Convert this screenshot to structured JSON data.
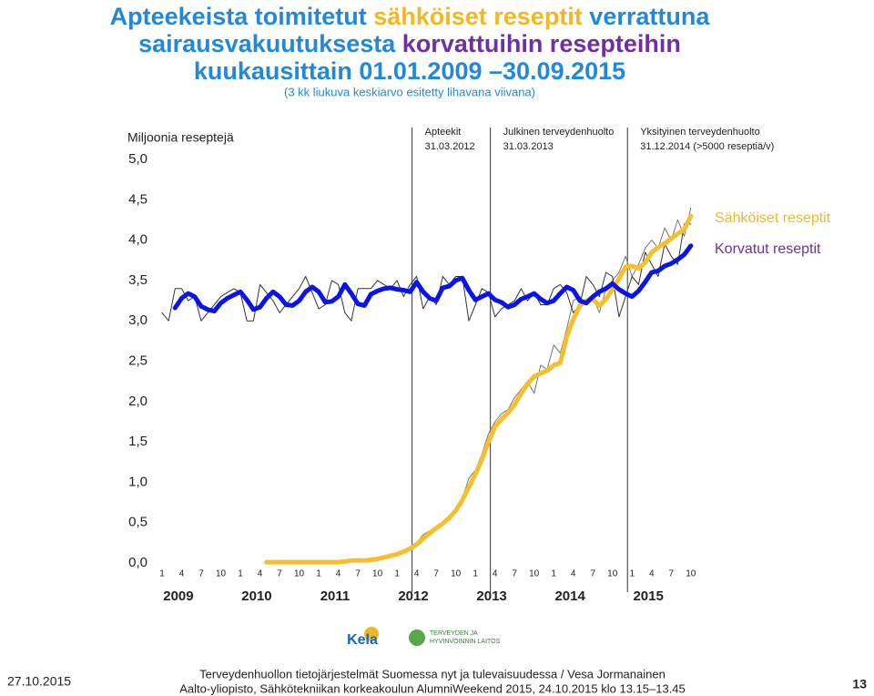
{
  "chart_data": {
    "type": "line",
    "title_parts": [
      [
        {
          "text": "Apteekeista toimitetut ",
          "color": "#2388d8"
        },
        {
          "text": "sähköiset reseptit",
          "color": "#f2b824"
        },
        {
          "text": " verrattuna",
          "color": "#2388d8"
        }
      ],
      [
        {
          "text": "sairausvakuutuksesta ",
          "color": "#2388d8"
        },
        {
          "text": "korvattuihin resepteihin",
          "color": "#7030a0"
        }
      ],
      [
        {
          "text": "kuukausittain 01.01.2009 –30.09.2015",
          "color": "#2388d8"
        }
      ]
    ],
    "subtitle": "(3 kk liukuva keskiarvo esitetty lihavana viivana)",
    "y_label": "Miljoonia reseptejä",
    "ylim": [
      0,
      5
    ],
    "yticks": [
      {
        "value": 0,
        "label": "0,0"
      },
      {
        "value": 0.5,
        "label": "0,5"
      },
      {
        "value": 1,
        "label": "1,0"
      },
      {
        "value": 1.5,
        "label": "1,5"
      },
      {
        "value": 2,
        "label": "2,0"
      },
      {
        "value": 2.5,
        "label": "2,5"
      },
      {
        "value": 3,
        "label": "3,0"
      },
      {
        "value": 3.5,
        "label": "3,5"
      },
      {
        "value": 4,
        "label": "4,0"
      },
      {
        "value": 4.5,
        "label": "4,5"
      },
      {
        "value": 5,
        "label": "5,0"
      }
    ],
    "grid": false,
    "categories": [
      "1",
      null,
      null,
      "4",
      null,
      null,
      "7",
      null,
      null,
      "10",
      null,
      null,
      "1",
      null,
      null,
      "4",
      null,
      null,
      "7",
      null,
      null,
      "10",
      null,
      null,
      "1",
      null,
      null,
      "4",
      null,
      null,
      "7",
      null,
      null,
      "10",
      null,
      null,
      "1",
      null,
      null,
      "4",
      null,
      null,
      "7",
      null,
      null,
      "10",
      null,
      null,
      "1",
      null,
      null,
      "4",
      null,
      null,
      "7",
      null,
      null,
      "10",
      null,
      null,
      "1",
      null,
      null,
      "4",
      null,
      null,
      "7",
      null,
      null,
      "10",
      null,
      null,
      "1",
      null,
      null,
      "4",
      null,
      null,
      "7",
      null,
      null,
      "10"
    ],
    "years": [
      "2009",
      "2010",
      "2011",
      "2012",
      "2013",
      "2014",
      "2015"
    ],
    "annotations": [
      {
        "lines": [
          "Apteekit",
          "31.03.2012"
        ],
        "date": "31.03.2012"
      },
      {
        "lines": [
          "Julkinen terveydenhuolto",
          "31.03.2013"
        ],
        "date": "31.03.2013"
      },
      {
        "lines": [
          "Yksityinen terveydenhuolto",
          "31.12.2014 (>5000 reseptiä/v)"
        ],
        "date": "31.12.2014"
      }
    ],
    "series": [
      {
        "color": "#777777",
        "width": 1,
        "values": [
          null,
          null,
          null,
          null,
          null,
          null,
          null,
          null,
          null,
          null,
          null,
          null,
          null,
          null,
          null,
          null,
          0.01,
          0.01,
          0.01,
          0.01,
          0.01,
          0.01,
          0.01,
          0.01,
          0.01,
          0.01,
          0.02,
          0.02,
          0.02,
          0.03,
          0.03,
          0.03,
          0.04,
          0.05,
          0.08,
          0.1,
          0.11,
          0.15,
          0.2,
          0.25,
          0.35,
          0.4,
          0.45,
          0.5,
          0.55,
          0.68,
          0.8,
          1.05,
          1.15,
          1.35,
          1.6,
          1.75,
          1.85,
          1.9,
          2.05,
          2.15,
          2.25,
          2.1,
          2.45,
          2.4,
          2.7,
          2.6,
          2.9,
          3.25,
          3.3,
          3.2,
          3.3,
          3.1,
          3.4,
          3.5,
          3.6,
          3.8,
          3.55,
          3.7,
          3.9,
          4.0,
          3.9,
          4.15,
          4.0,
          4.25,
          4.05,
          4.4
        ]
      },
      {
        "color": "#333333",
        "width": 1,
        "values": [
          3.1,
          3.0,
          3.4,
          3.4,
          3.25,
          3.3,
          3.0,
          3.1,
          3.2,
          3.3,
          3.35,
          3.4,
          3.35,
          3.0,
          3.0,
          3.45,
          3.35,
          3.25,
          3.1,
          3.2,
          3.3,
          3.4,
          3.55,
          3.35,
          3.15,
          3.2,
          3.5,
          3.45,
          3.1,
          3.0,
          3.4,
          3.4,
          3.4,
          3.5,
          3.45,
          3.4,
          3.5,
          3.3,
          3.45,
          3.55,
          3.15,
          3.3,
          3.2,
          3.55,
          3.45,
          3.55,
          3.55,
          3.0,
          3.2,
          3.4,
          3.35,
          3.05,
          3.15,
          3.2,
          3.25,
          3.4,
          3.25,
          3.35,
          3.2,
          3.2,
          3.4,
          3.45,
          3.35,
          3.1,
          3.2,
          3.55,
          3.45,
          3.3,
          3.6,
          3.55,
          3.05,
          3.3,
          3.55,
          3.45,
          3.85,
          3.7,
          3.55,
          3.95,
          3.8,
          3.7,
          4.2,
          4.2
        ]
      },
      {
        "name": "Sähköiset reseptit",
        "color": "#f5c02b",
        "legend_color": "#f2b824",
        "width": 5,
        "values": [
          null,
          null,
          null,
          null,
          null,
          null,
          null,
          null,
          null,
          null,
          null,
          null,
          null,
          null,
          null,
          null,
          0.01,
          0.01,
          0.01,
          0.01,
          0.01,
          0.01,
          0.01,
          0.01,
          0.01,
          0.01,
          0.01,
          0.01,
          0.02,
          0.03,
          0.03,
          0.03,
          0.04,
          0.05,
          0.07,
          0.09,
          0.11,
          0.14,
          0.18,
          0.23,
          0.3,
          0.37,
          0.43,
          0.49,
          0.56,
          0.65,
          0.78,
          0.94,
          1.1,
          1.28,
          1.5,
          1.69,
          1.78,
          1.86,
          1.96,
          2.1,
          2.22,
          2.31,
          2.35,
          2.38,
          2.45,
          2.48,
          2.8,
          3.02,
          3.19,
          3.25,
          3.27,
          3.19,
          3.27,
          3.39,
          3.52,
          3.67,
          3.68,
          3.65,
          3.72,
          3.85,
          3.91,
          3.96,
          4.02,
          4.08,
          4.13,
          4.3
        ]
      },
      {
        "name": "Korvatut reseptit",
        "color": "#0a14e6",
        "legend_color": "#7030a0",
        "width": 5,
        "values": [
          null,
          null,
          3.16,
          3.28,
          3.34,
          3.3,
          3.18,
          3.14,
          3.12,
          3.22,
          3.28,
          3.32,
          3.36,
          3.26,
          3.14,
          3.17,
          3.28,
          3.36,
          3.3,
          3.2,
          3.19,
          3.25,
          3.36,
          3.42,
          3.36,
          3.23,
          3.24,
          3.3,
          3.45,
          3.34,
          3.21,
          3.19,
          3.33,
          3.37,
          3.4,
          3.41,
          3.39,
          3.38,
          3.36,
          3.48,
          3.36,
          3.28,
          3.25,
          3.41,
          3.43,
          3.5,
          3.53,
          3.38,
          3.26,
          3.3,
          3.34,
          3.26,
          3.23,
          3.17,
          3.2,
          3.27,
          3.3,
          3.34,
          3.27,
          3.22,
          3.25,
          3.34,
          3.42,
          3.38,
          3.25,
          3.22,
          3.3,
          3.36,
          3.4,
          3.46,
          3.39,
          3.34,
          3.3,
          3.37,
          3.48,
          3.6,
          3.62,
          3.68,
          3.71,
          3.76,
          3.82,
          3.93
        ]
      }
    ]
  },
  "logos": {
    "kela": "Kela",
    "thl": [
      "TERVEYDEN JA",
      "HYVINVOINNIN LAITOS"
    ]
  },
  "footer": {
    "date": "27.10.2015",
    "lines": [
      "Terveydenhuollon tietojärjestelmät Suomessa nyt ja tulevaisuudessa / Vesa Jormanainen",
      "Aalto-yliopisto, Sähkötekniikan korkeakoulun AlumniWeekend 2015, 24.10.2015 klo 13.15–13.45"
    ],
    "page": "13"
  }
}
